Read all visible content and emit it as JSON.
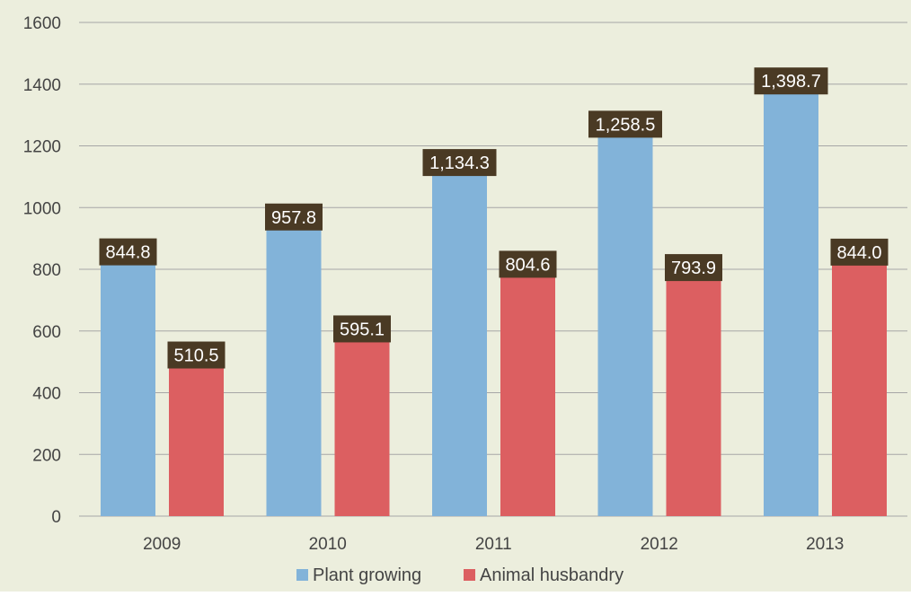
{
  "chart_data": {
    "type": "bar",
    "categories": [
      "2009",
      "2010",
      "2011",
      "2012",
      "2013"
    ],
    "series": [
      {
        "name": "Plant growing",
        "values": [
          844.8,
          957.8,
          1134.3,
          1258.5,
          1398.7
        ],
        "labels": [
          "844.8",
          "957.8",
          "1,134.3",
          "1,258.5",
          "1,398.7"
        ]
      },
      {
        "name": "Animal husbandry",
        "values": [
          510.5,
          595.1,
          804.6,
          793.9,
          844.0
        ],
        "labels": [
          "510.5",
          "595.1",
          "804.6",
          "793.9",
          "844.0"
        ]
      }
    ],
    "yticks": [
      0,
      200,
      400,
      600,
      800,
      1000,
      1200,
      1400,
      1600
    ],
    "ylim": [
      0,
      1600
    ],
    "grid": true,
    "legend_position": "bottom-center",
    "title": "",
    "xlabel": "",
    "ylabel": ""
  },
  "colors": {
    "background": "#eceedd",
    "plant_growing": "#82b3d9",
    "animal_husbandry": "#dc5f61",
    "data_label_bg": "#4a3a24",
    "data_label_text": "#ffffff",
    "grid": "#a6a6a6",
    "axis_text": "#444444"
  }
}
